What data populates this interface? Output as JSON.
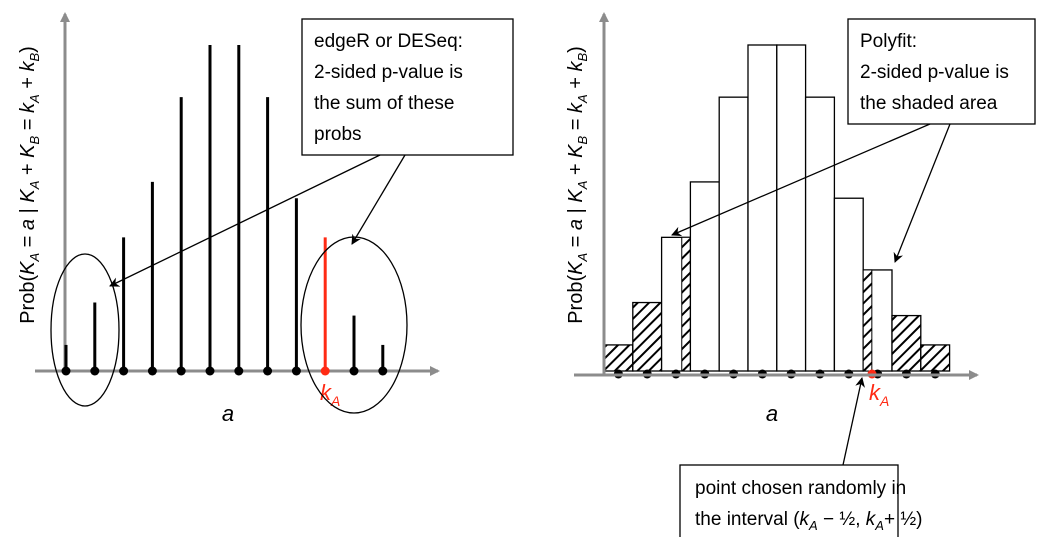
{
  "left_panel": {
    "ylabel": {
      "prefix": "Prob(",
      "K": "K",
      "A": "A",
      "B": "B",
      "k": "k",
      "a": "a",
      "eq1": " = ",
      "bar": " | ",
      "eq2": " + ",
      "eq3": " = ",
      "plus": " + ",
      "suffix": ")"
    },
    "xlabel": "a",
    "kA_label": {
      "k": "k",
      "sub": "A"
    },
    "callout_lines": [
      "edgeR or DESeq:",
      "2-sided p-value is",
      "the sum of these",
      "probs"
    ],
    "colors": {
      "stems": "#000000",
      "highlight": "#ff2a14",
      "axis": "#8c8c8c"
    }
  },
  "right_panel": {
    "xlabel": "a",
    "kA_label": {
      "k": "k",
      "sub": "A"
    },
    "callout_lines": [
      "Polyfit:",
      "2-sided p-value is",
      "the shaded area"
    ],
    "bottom_callout": {
      "line1": "point chosen randomly in",
      "line2_pre": "the interval (",
      "k": "k",
      "sub": "A",
      "mid": " − ½, ",
      "end": "+ ½)"
    },
    "colors": {
      "bars": "#000000",
      "point": "#ff2a14",
      "axis": "#8c8c8c"
    }
  },
  "chart_data": [
    {
      "type": "bar",
      "x": [
        1,
        2,
        3,
        4,
        5,
        6,
        7,
        8,
        9,
        10,
        11,
        12
      ],
      "values": [
        0.08,
        0.21,
        0.41,
        0.58,
        0.84,
        1.0,
        1.0,
        0.84,
        0.53,
        0.41,
        0.17,
        0.08
      ],
      "highlighted_index": 9,
      "title": "",
      "xlabel": "a",
      "ylabel": "Prob(K_A = a | K_A + K_B = k_A + k_B)"
    },
    {
      "type": "bar",
      "x": [
        1,
        2,
        3,
        4,
        5,
        6,
        7,
        8,
        9,
        10,
        11,
        12
      ],
      "values": [
        0.08,
        0.21,
        0.41,
        0.58,
        0.84,
        1.0,
        1.0,
        0.84,
        0.53,
        0.31,
        0.17,
        0.08
      ],
      "shaded": [
        "full",
        "full",
        "partial",
        "none",
        "none",
        "none",
        "none",
        "none",
        "none",
        "partial",
        "full",
        "full"
      ],
      "title": "",
      "xlabel": "a",
      "ylabel": "Prob(K_A = a | K_A + K_B = k_A + k_B)"
    }
  ]
}
